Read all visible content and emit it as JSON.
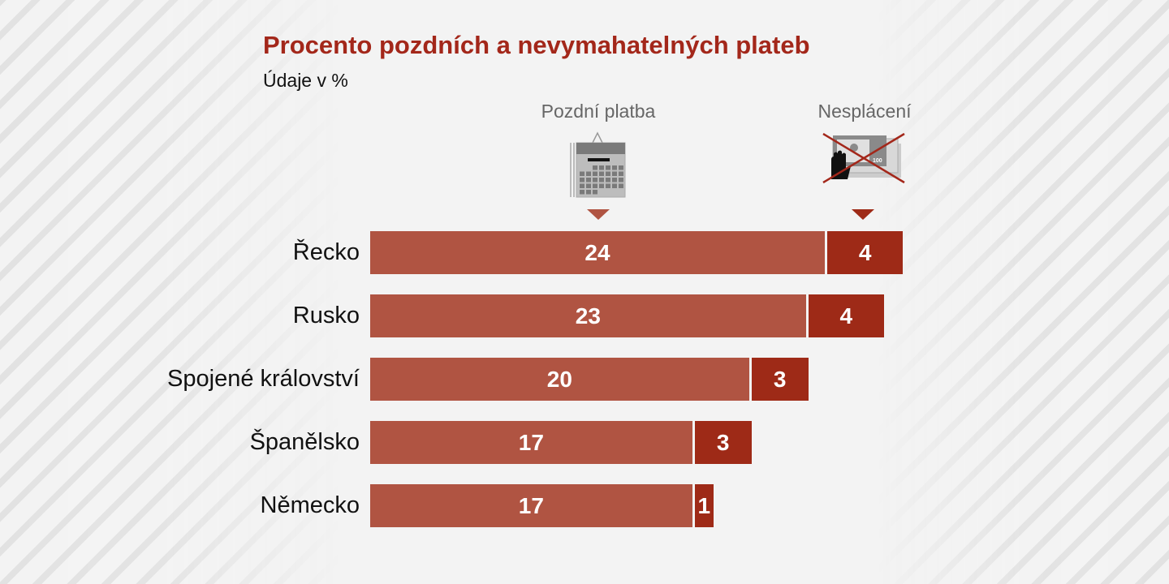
{
  "chart_data": {
    "type": "bar",
    "stacked": true,
    "orientation": "horizontal",
    "title": "Procento pozdních a nevymahatelných plateb",
    "subtitle": "Údaje v %",
    "categories": [
      "Řecko",
      "Rusko",
      "Spojené království",
      "Španělsko",
      "Německo"
    ],
    "series": [
      {
        "name": "Pozdní platba",
        "color": "#b05442",
        "icon": "calendar-icon",
        "values": [
          24,
          23,
          20,
          17,
          17
        ]
      },
      {
        "name": "Nesplácení",
        "color": "#9e2a17",
        "icon": "no-money-icon",
        "values": [
          4,
          4,
          3,
          3,
          1
        ]
      }
    ],
    "xlim": [
      0,
      28
    ],
    "grid": false,
    "legend": "top"
  }
}
